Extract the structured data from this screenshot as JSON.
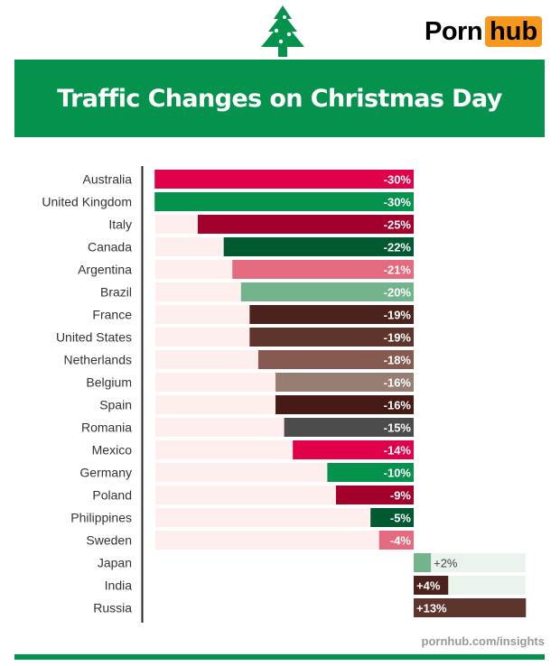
{
  "header": {
    "title": "Traffic Changes on Christmas Day",
    "logo_part1": "Porn",
    "logo_part2": "hub",
    "tree_icon": "christmas-tree-icon"
  },
  "footer": {
    "source": "pornhub.com/insights"
  },
  "colors": {
    "brand_green": "#04924d",
    "logo_orange": "#f7971d",
    "track_negative": "#feeeee",
    "track_positive": "#eaf3ec"
  },
  "chart_data": {
    "type": "bar",
    "orientation": "horizontal",
    "title": "Traffic Changes on Christmas Day",
    "xlabel": "",
    "ylabel": "",
    "xlim": [
      -30,
      13
    ],
    "value_suffix": "%",
    "categories": [
      "Australia",
      "United Kingdom",
      "Italy",
      "Canada",
      "Argentina",
      "Brazil",
      "France",
      "United States",
      "Netherlands",
      "Belgium",
      "Spain",
      "Romania",
      "Mexico",
      "Germany",
      "Poland",
      "Philippines",
      "Sweden",
      "Japan",
      "India",
      "Russia"
    ],
    "values": [
      -30,
      -30,
      -25,
      -22,
      -21,
      -20,
      -19,
      -19,
      -18,
      -16,
      -16,
      -15,
      -14,
      -10,
      -9,
      -5,
      -4,
      2,
      4,
      13
    ],
    "labels": [
      "-30%",
      "-30%",
      "-25%",
      "-22%",
      "-21%",
      "-20%",
      "-19%",
      "-19%",
      "-18%",
      "-16%",
      "-16%",
      "-15%",
      "-14%",
      "-10%",
      "-9%",
      "-5%",
      "-4%",
      "+2%",
      "+4%",
      "+13%"
    ],
    "bar_colors": [
      "#e0004a",
      "#04924d",
      "#a3002c",
      "#005a31",
      "#e46a7f",
      "#74b48d",
      "#4c221d",
      "#5e352d",
      "#865a50",
      "#987e72",
      "#461b16",
      "#4c4c4c",
      "#e0004a",
      "#04924d",
      "#a3002c",
      "#005a31",
      "#e46a7f",
      "#74b48d",
      "#4c221d",
      "#5e352d"
    ],
    "grid": false,
    "legend": "none"
  }
}
